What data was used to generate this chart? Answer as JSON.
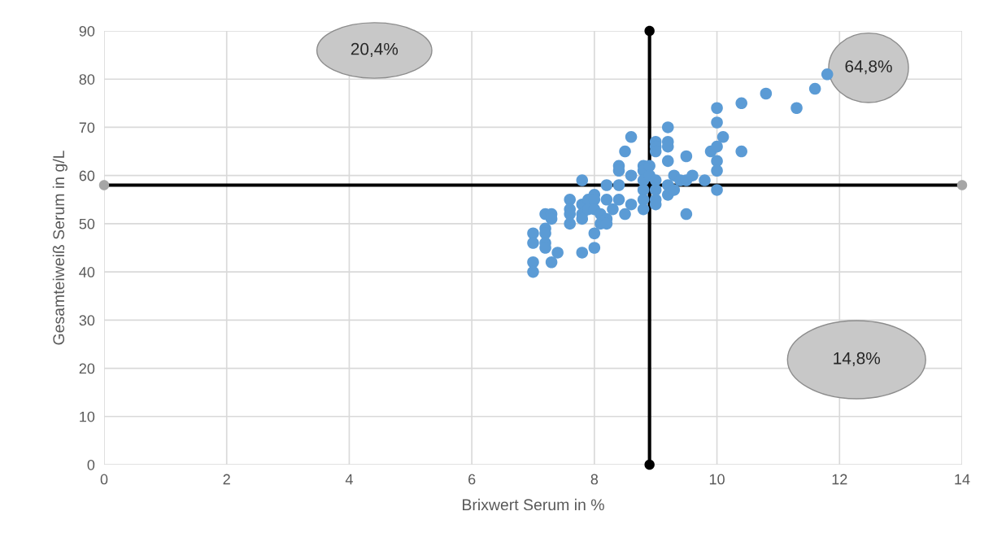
{
  "chart_data": {
    "type": "scatter",
    "xlabel": "Brixwert Serum in %",
    "ylabel": "Gesamteiweiß Serum in g/L",
    "xlim": [
      0,
      14
    ],
    "xticks": [
      0,
      2,
      4,
      6,
      8,
      10,
      12,
      14
    ],
    "ylim": [
      0,
      90
    ],
    "yticks": [
      0,
      10,
      20,
      30,
      40,
      50,
      60,
      70,
      80,
      90
    ],
    "grid": true,
    "marker": "circle",
    "series": [
      {
        "color": "#5b9bd5",
        "x": [
          7.0,
          7.0,
          7.0,
          7.0,
          7.2,
          7.2,
          7.2,
          7.2,
          7.2,
          7.3,
          7.3,
          7.3,
          7.4,
          7.6,
          7.6,
          7.6,
          7.6,
          7.8,
          7.8,
          7.8,
          7.8,
          7.8,
          7.9,
          7.9,
          8.0,
          8.0,
          8.0,
          8.0,
          8.0,
          8.1,
          8.1,
          8.2,
          8.2,
          8.2,
          8.2,
          8.3,
          8.4,
          8.4,
          8.4,
          8.4,
          8.5,
          8.5,
          8.6,
          8.6,
          8.6,
          8.8,
          8.8,
          8.8,
          8.8,
          8.8,
          8.8,
          8.9,
          8.9,
          9.0,
          9.0,
          9.0,
          9.0,
          9.0,
          9.0,
          9.0,
          9.2,
          9.2,
          9.2,
          9.2,
          9.2,
          9.2,
          9.3,
          9.3,
          9.4,
          9.5,
          9.5,
          9.5,
          9.6,
          9.8,
          9.9,
          10.0,
          10.0,
          10.0,
          10.0,
          10.0,
          10.0,
          10.1,
          10.4,
          10.4,
          10.8,
          11.3,
          11.6,
          11.8
        ],
        "values": [
          48,
          46,
          42,
          40,
          52,
          49,
          48,
          46,
          45,
          52,
          51,
          42,
          44,
          55,
          53,
          52,
          50,
          59,
          54,
          52,
          51,
          44,
          55,
          53,
          56,
          55,
          53,
          48,
          45,
          52,
          50,
          58,
          55,
          51,
          50,
          53,
          62,
          61,
          58,
          55,
          65,
          52,
          68,
          60,
          54,
          62,
          61,
          59,
          57,
          55,
          53,
          62,
          60,
          67,
          66,
          65,
          59,
          57,
          55,
          54,
          70,
          67,
          66,
          63,
          58,
          56,
          60,
          57,
          59,
          64,
          59,
          52,
          60,
          59,
          65,
          74,
          71,
          66,
          63,
          61,
          57,
          68,
          75,
          65,
          77,
          74,
          78,
          81
        ]
      },
      {
        "type": "line",
        "color": "#000000",
        "colors": [
          "#000000",
          "#000000"
        ],
        "x": [
          8.9,
          8.9
        ],
        "values": [
          0,
          90
        ]
      },
      {
        "type": "line",
        "color": "#000000",
        "colors": [
          "#a6a6a6",
          "#a6a6a6"
        ],
        "x": [
          0,
          14
        ],
        "values": [
          58,
          58
        ]
      }
    ],
    "annotations": [
      "20,4%",
      "64,8%",
      "14,8%"
    ]
  }
}
